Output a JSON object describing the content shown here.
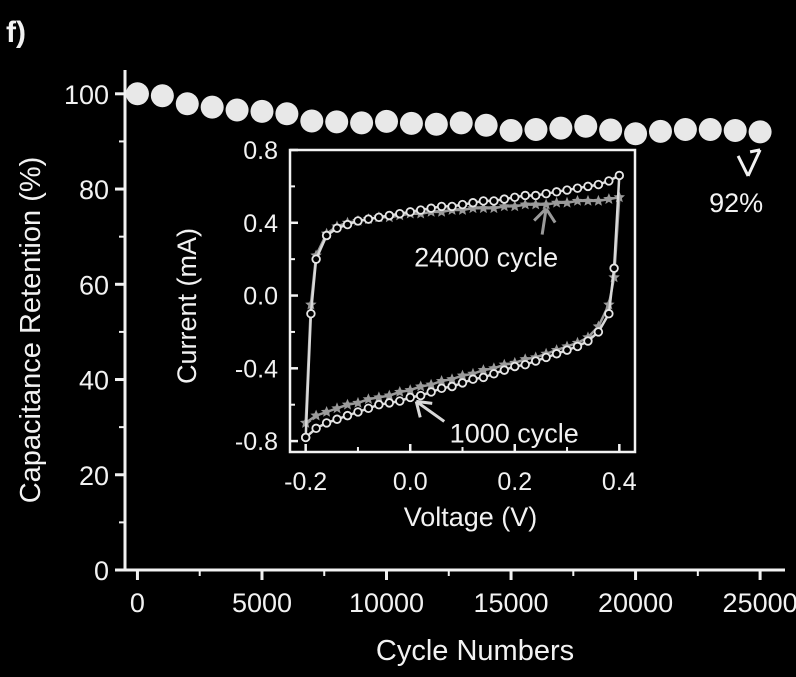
{
  "panel_label": "f)",
  "chart_data": [
    {
      "type": "scatter",
      "xlabel": "Cycle Numbers",
      "ylabel": "Capacitance Retention (%)",
      "xlim": [
        -500,
        26000
      ],
      "ylim": [
        0,
        105
      ],
      "xticks": [
        0,
        5000,
        10000,
        15000,
        20000,
        25000
      ],
      "xtick_labels": [
        "0",
        "5000",
        "10000",
        "15000",
        "20000",
        "25000"
      ],
      "yticks": [
        0,
        20,
        40,
        60,
        80,
        100
      ],
      "ytick_labels": [
        "0",
        "20",
        "40",
        "60",
        "80",
        "100"
      ],
      "series": [
        {
          "x": [
            0,
            1000,
            2000,
            3000,
            4000,
            5000,
            6000,
            7000,
            8000,
            9000,
            10000,
            11000,
            12000,
            13000,
            14000,
            15000,
            16000,
            17000,
            18000,
            19000,
            20000,
            21000,
            22000,
            23000,
            24000,
            25000
          ],
          "y": [
            100,
            99.6,
            97.9,
            97.2,
            96.6,
            96.3,
            95.8,
            94.3,
            94.1,
            93.9,
            94.2,
            93.8,
            93.6,
            93.9,
            93.4,
            92.3,
            92.5,
            92.8,
            93.2,
            92.4,
            91.6,
            92.1,
            92.5,
            92.5,
            92.3,
            92.0
          ]
        }
      ],
      "annotations": [
        {
          "text": "92%",
          "x": 25000,
          "y": 92
        }
      ],
      "grid": false,
      "color": "#e8e8e8"
    },
    {
      "type": "line",
      "xlabel": "Voltage (V)",
      "ylabel": "Current (mA)",
      "xlim": [
        -0.23,
        0.43
      ],
      "ylim": [
        -0.86,
        0.8
      ],
      "xticks": [
        -0.2,
        0.0,
        0.2,
        0.4
      ],
      "xtick_labels": [
        "-0.2",
        "0.0",
        "0.2",
        "0.4"
      ],
      "yticks": [
        -0.8,
        -0.4,
        0.0,
        0.4,
        0.8
      ],
      "ytick_labels": [
        "-0.8",
        "-0.4",
        "0.0",
        "0.4",
        "0.8"
      ],
      "grid": false,
      "series": [
        {
          "label": "1000 cycle",
          "marker": "circle",
          "color": "#d9d9d9",
          "upper": {
            "x": [
              -0.2,
              -0.19,
              -0.18,
              -0.16,
              -0.14,
              -0.12,
              -0.1,
              -0.08,
              -0.06,
              -0.04,
              -0.02,
              0.0,
              0.02,
              0.04,
              0.06,
              0.08,
              0.1,
              0.12,
              0.14,
              0.16,
              0.18,
              0.2,
              0.22,
              0.24,
              0.26,
              0.28,
              0.3,
              0.32,
              0.34,
              0.36,
              0.38,
              0.4
            ],
            "y": [
              -0.78,
              -0.1,
              0.2,
              0.33,
              0.37,
              0.39,
              0.41,
              0.42,
              0.43,
              0.44,
              0.45,
              0.46,
              0.47,
              0.48,
              0.49,
              0.49,
              0.5,
              0.51,
              0.52,
              0.52,
              0.53,
              0.54,
              0.55,
              0.55,
              0.56,
              0.57,
              0.58,
              0.59,
              0.6,
              0.61,
              0.63,
              0.66
            ]
          },
          "lower": {
            "x": [
              0.4,
              0.39,
              0.38,
              0.36,
              0.34,
              0.32,
              0.3,
              0.28,
              0.26,
              0.24,
              0.22,
              0.2,
              0.18,
              0.16,
              0.14,
              0.12,
              0.1,
              0.08,
              0.06,
              0.04,
              0.02,
              0.0,
              -0.02,
              -0.04,
              -0.06,
              -0.08,
              -0.1,
              -0.12,
              -0.14,
              -0.16,
              -0.18,
              -0.2
            ],
            "y": [
              0.66,
              0.15,
              -0.1,
              -0.2,
              -0.25,
              -0.28,
              -0.3,
              -0.32,
              -0.34,
              -0.36,
              -0.38,
              -0.39,
              -0.41,
              -0.43,
              -0.45,
              -0.46,
              -0.48,
              -0.5,
              -0.51,
              -0.53,
              -0.55,
              -0.56,
              -0.58,
              -0.59,
              -0.6,
              -0.62,
              -0.64,
              -0.66,
              -0.68,
              -0.7,
              -0.73,
              -0.78
            ]
          }
        },
        {
          "label": "24000 cycle",
          "marker": "star",
          "color": "#9a9a9a",
          "upper": {
            "x": [
              -0.2,
              -0.19,
              -0.18,
              -0.16,
              -0.14,
              -0.12,
              -0.1,
              -0.08,
              -0.06,
              -0.04,
              -0.02,
              0.0,
              0.02,
              0.04,
              0.06,
              0.08,
              0.1,
              0.12,
              0.14,
              0.16,
              0.18,
              0.2,
              0.22,
              0.24,
              0.26,
              0.28,
              0.3,
              0.32,
              0.34,
              0.36,
              0.38,
              0.4
            ],
            "y": [
              -0.7,
              -0.05,
              0.22,
              0.34,
              0.38,
              0.4,
              0.41,
              0.42,
              0.43,
              0.43,
              0.44,
              0.45,
              0.45,
              0.46,
              0.46,
              0.47,
              0.47,
              0.48,
              0.48,
              0.48,
              0.49,
              0.49,
              0.5,
              0.5,
              0.5,
              0.51,
              0.51,
              0.52,
              0.52,
              0.52,
              0.53,
              0.54
            ]
          },
          "lower": {
            "x": [
              0.4,
              0.39,
              0.38,
              0.36,
              0.34,
              0.32,
              0.3,
              0.28,
              0.26,
              0.24,
              0.22,
              0.2,
              0.18,
              0.16,
              0.14,
              0.12,
              0.1,
              0.08,
              0.06,
              0.04,
              0.02,
              0.0,
              -0.02,
              -0.04,
              -0.06,
              -0.08,
              -0.1,
              -0.12,
              -0.14,
              -0.16,
              -0.18,
              -0.2
            ],
            "y": [
              0.54,
              0.1,
              -0.05,
              -0.17,
              -0.23,
              -0.26,
              -0.28,
              -0.3,
              -0.32,
              -0.34,
              -0.35,
              -0.37,
              -0.38,
              -0.4,
              -0.41,
              -0.43,
              -0.44,
              -0.46,
              -0.47,
              -0.49,
              -0.5,
              -0.52,
              -0.53,
              -0.55,
              -0.56,
              -0.57,
              -0.59,
              -0.6,
              -0.62,
              -0.64,
              -0.66,
              -0.7
            ]
          }
        }
      ],
      "annotations": [
        {
          "text": "24000 cycle",
          "x": 0.26,
          "y": 0.5
        },
        {
          "text": "1000 cycle",
          "x": 0.0,
          "y": -0.56
        }
      ]
    }
  ]
}
